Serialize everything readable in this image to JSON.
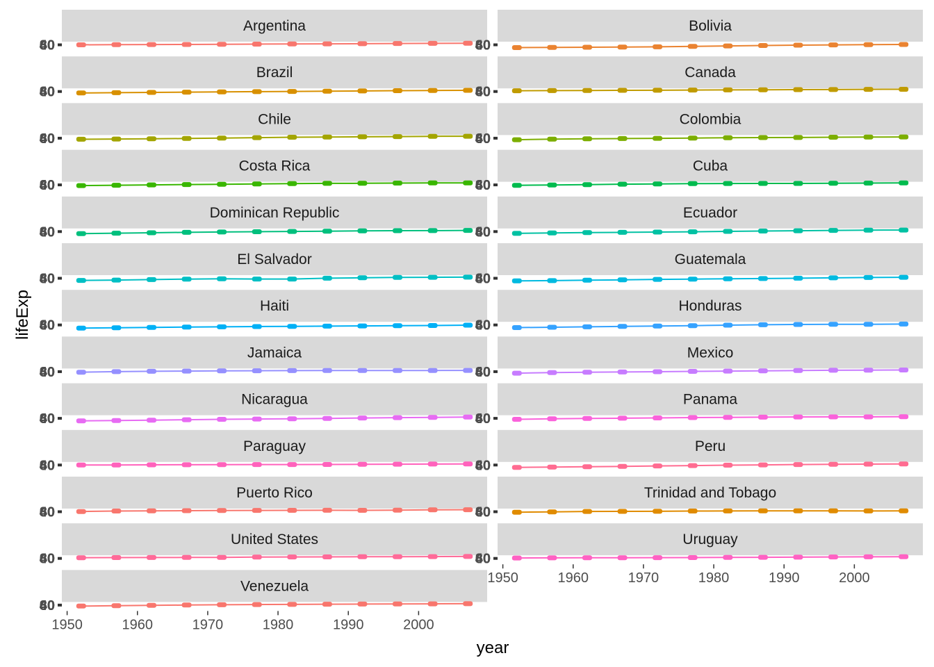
{
  "chart_data": {
    "type": "line",
    "facet": "country",
    "xlabel": "year",
    "ylabel": "lifeExp",
    "x_ticks": [
      1950,
      1960,
      1970,
      1980,
      1990,
      2000
    ],
    "y_tick_labels": [
      "40",
      "60",
      "80"
    ],
    "xlim": [
      1952,
      2007
    ],
    "x": [
      1952,
      1957,
      1962,
      1967,
      1972,
      1977,
      1982,
      1987,
      1992,
      1997,
      2002,
      2007
    ],
    "grid": false,
    "legend": "none",
    "series": [
      {
        "name": "Argentina",
        "color": "#F8766D",
        "values": [
          62.5,
          64.4,
          65.1,
          65.6,
          67.1,
          68.5,
          69.9,
          70.8,
          71.9,
          73.3,
          74.3,
          75.3
        ]
      },
      {
        "name": "Bolivia",
        "color": "#EA8331",
        "values": [
          40.4,
          41.9,
          43.4,
          45.0,
          46.7,
          50.0,
          53.9,
          57.3,
          59.96,
          62.05,
          63.88,
          65.55
        ]
      },
      {
        "name": "Brazil",
        "color": "#D89000",
        "values": [
          50.9,
          53.3,
          55.7,
          57.6,
          59.5,
          61.5,
          63.3,
          65.2,
          67.1,
          69.4,
          71.0,
          72.4
        ]
      },
      {
        "name": "Canada",
        "color": "#C09B00",
        "values": [
          68.8,
          70.0,
          71.3,
          72.1,
          72.9,
          74.2,
          75.8,
          76.9,
          78.0,
          78.6,
          79.8,
          80.7
        ]
      },
      {
        "name": "Chile",
        "color": "#A3A500",
        "values": [
          54.7,
          56.1,
          57.9,
          60.5,
          63.4,
          67.1,
          70.6,
          72.5,
          74.1,
          75.8,
          77.9,
          78.6
        ]
      },
      {
        "name": "Colombia",
        "color": "#7CAE00",
        "values": [
          50.6,
          55.1,
          57.9,
          60.0,
          61.6,
          63.8,
          66.7,
          67.8,
          68.4,
          70.3,
          71.7,
          72.9
        ]
      },
      {
        "name": "Costa Rica",
        "color": "#39B600",
        "values": [
          57.2,
          60.0,
          62.8,
          65.4,
          67.8,
          70.8,
          73.4,
          74.8,
          75.7,
          77.3,
          78.1,
          78.8
        ]
      },
      {
        "name": "Cuba",
        "color": "#00BB4E",
        "values": [
          59.4,
          62.3,
          65.2,
          68.3,
          70.7,
          72.6,
          73.7,
          74.2,
          74.4,
          76.2,
          77.2,
          78.3
        ]
      },
      {
        "name": "Dominican Republic",
        "color": "#00BF7D",
        "values": [
          45.9,
          49.8,
          53.5,
          56.8,
          59.6,
          61.8,
          63.7,
          66.0,
          68.5,
          69.96,
          70.8,
          72.2
        ]
      },
      {
        "name": "Ecuador",
        "color": "#00C1A3",
        "values": [
          48.4,
          51.4,
          54.6,
          56.7,
          58.8,
          61.3,
          64.3,
          67.2,
          69.6,
          72.3,
          74.2,
          74.99
        ]
      },
      {
        "name": "El Salvador",
        "color": "#00BFC4",
        "values": [
          45.3,
          48.6,
          52.3,
          55.9,
          58.2,
          56.7,
          56.6,
          63.2,
          66.8,
          69.5,
          70.7,
          71.9
        ]
      },
      {
        "name": "Guatemala",
        "color": "#00BAE0",
        "values": [
          42.0,
          44.1,
          47.0,
          50.0,
          53.7,
          56.0,
          58.1,
          60.8,
          63.4,
          66.3,
          68.98,
          70.3
        ]
      },
      {
        "name": "Haiti",
        "color": "#00B0F6",
        "values": [
          37.6,
          40.7,
          43.6,
          46.2,
          48.0,
          49.9,
          51.5,
          53.6,
          55.1,
          56.7,
          58.1,
          60.9
        ]
      },
      {
        "name": "Honduras",
        "color": "#35A2FF",
        "values": [
          41.9,
          44.7,
          48.0,
          50.9,
          53.9,
          57.4,
          60.9,
          64.5,
          66.4,
          67.7,
          68.6,
          70.2
        ]
      },
      {
        "name": "Jamaica",
        "color": "#9590FF",
        "values": [
          58.5,
          62.6,
          65.6,
          67.5,
          69.0,
          70.1,
          71.2,
          71.8,
          71.8,
          72.3,
          72.0,
          72.6
        ]
      },
      {
        "name": "Mexico",
        "color": "#C77CFF",
        "values": [
          50.8,
          55.2,
          58.3,
          60.1,
          62.4,
          65.0,
          67.4,
          69.5,
          71.5,
          73.7,
          74.9,
          76.2
        ]
      },
      {
        "name": "Nicaragua",
        "color": "#E76BF3",
        "values": [
          42.3,
          45.4,
          48.6,
          51.9,
          55.2,
          57.5,
          59.3,
          62.0,
          65.8,
          68.4,
          70.8,
          72.9
        ]
      },
      {
        "name": "Panama",
        "color": "#FA62DB",
        "values": [
          55.2,
          59.2,
          61.8,
          64.1,
          66.2,
          68.7,
          70.5,
          72.5,
          73.7,
          74.7,
          74.7,
          75.5
        ]
      },
      {
        "name": "Paraguay",
        "color": "#FF62BC",
        "values": [
          62.6,
          63.2,
          64.4,
          64.95,
          65.8,
          66.4,
          66.9,
          67.4,
          68.2,
          69.4,
          70.8,
          71.8
        ]
      },
      {
        "name": "Peru",
        "color": "#FF6C91",
        "values": [
          43.9,
          46.3,
          49.1,
          51.4,
          55.4,
          58.4,
          61.4,
          64.1,
          66.5,
          68.4,
          69.9,
          71.4
        ]
      },
      {
        "name": "Puerto Rico",
        "color": "#F8766D",
        "values": [
          64.3,
          68.5,
          69.6,
          71.1,
          72.2,
          73.4,
          73.8,
          74.6,
          73.9,
          74.9,
          77.8,
          78.7
        ]
      },
      {
        "name": "Trinidad and Tobago",
        "color": "#E08B00",
        "values": [
          59.1,
          61.8,
          64.9,
          65.4,
          65.9,
          68.3,
          68.8,
          69.6,
          69.9,
          69.5,
          68.98,
          69.8
        ]
      },
      {
        "name": "United States",
        "color": "#FF6A98",
        "values": [
          68.4,
          69.5,
          70.2,
          70.8,
          71.3,
          73.4,
          74.7,
          75.0,
          76.1,
          76.8,
          77.3,
          78.2
        ]
      },
      {
        "name": "Uruguay",
        "color": "#FF61C3",
        "values": [
          66.1,
          67.0,
          68.3,
          68.5,
          68.7,
          69.5,
          70.8,
          71.9,
          72.8,
          74.2,
          75.3,
          76.4
        ]
      },
      {
        "name": "Venezuela",
        "color": "#F8766D",
        "values": [
          55.1,
          57.9,
          60.8,
          63.5,
          65.7,
          67.5,
          68.6,
          70.2,
          71.2,
          72.1,
          72.8,
          73.7
        ]
      }
    ]
  }
}
